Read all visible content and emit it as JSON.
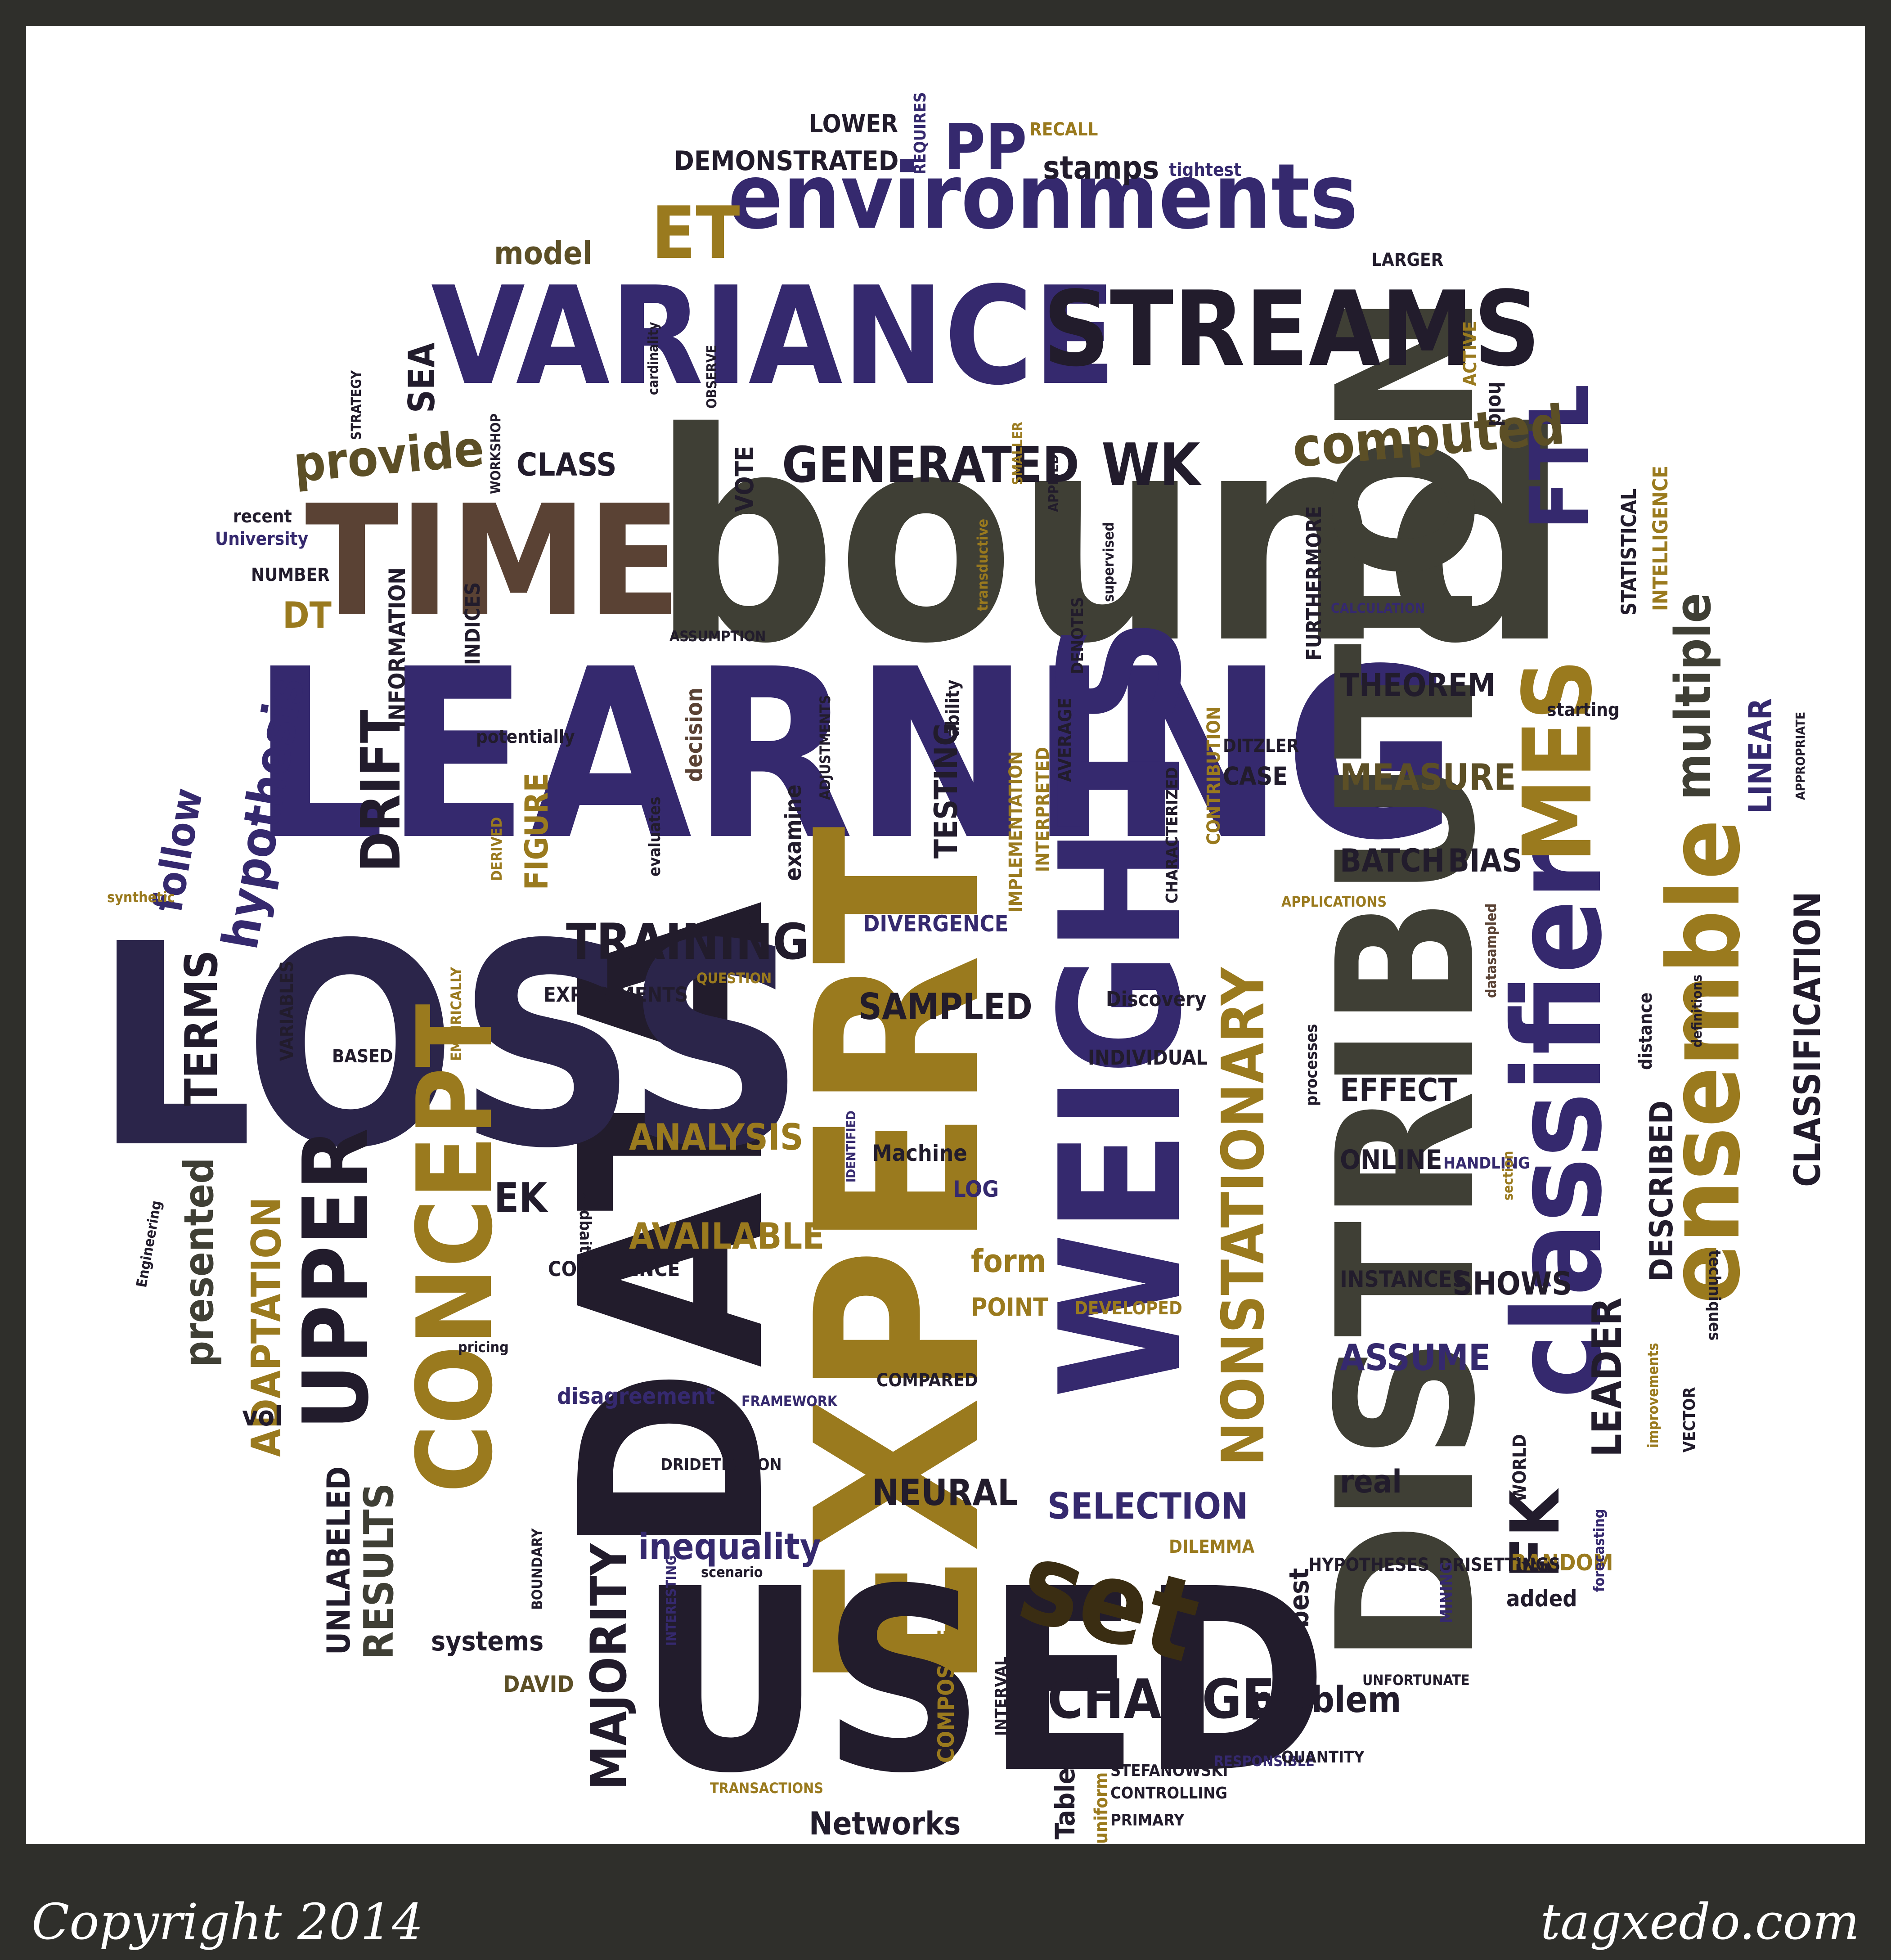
{
  "colors": {
    "frame": "#2f2f2b",
    "canvas": "#ffffff",
    "purple": "#35296e",
    "gold": "#9a7a1e",
    "olive": "#3f3f35",
    "brown": "#5a4234",
    "dark": "#221c2c"
  },
  "footer": {
    "copyright": "Copyright 2014",
    "site": "tagxedo.com"
  },
  "words": [
    "bound",
    "LEARNING",
    "DATA",
    "EXPERT",
    "LOSS",
    "DISTRIBUTION",
    "WEIGHTS",
    "USED",
    "TIME",
    "VARIANCE",
    "STREAMS",
    "environments",
    "classifier",
    "ensemble",
    "MES",
    "FTL",
    "CONCEPT",
    "UPPER",
    "NONSTATIONARY",
    "set",
    "TRAINING",
    "GENERATED",
    "WK",
    "computed",
    "provide",
    "hypothesis",
    "DRIFT",
    "FK",
    "ET",
    "PP",
    "CHANGE",
    "ADAPTATION",
    "ANALYSIS",
    "AVAILABLE",
    "SAMPLED",
    "SELECTION",
    "NEURAL",
    "MAJORITY",
    "TERMS",
    "presented",
    "follow",
    "RESULTS",
    "UNLABELED",
    "multiple",
    "CLASSIFICATION",
    "LINEAR",
    "THEOREM",
    "MEASURE",
    "BATCH",
    "BIAS",
    "LEADER",
    "DESCRIBED",
    "EFFECT",
    "ONLINE",
    "SHOWS",
    "INSTANCES",
    "ASSUME",
    "problem",
    "Networks",
    "systems",
    "inequality",
    "disagreement",
    "real",
    "best",
    "TESTING",
    "FIGURE",
    "INFORMATION",
    "CLASS",
    "SEA",
    "DT",
    "EK",
    "CONFIDENCE",
    "EXPERIMENTS",
    "DIVERGENCE",
    "INDIVIDUAL",
    "Discovery",
    "Machine",
    "LOG",
    "form",
    "POINT",
    "DEVELOPED",
    "COMPARED",
    "FRAMEWORK",
    "DRIDETECTION",
    "COMPOSITE",
    "INTERVAL",
    "DAVID",
    "Table",
    "uniform",
    "CONTROLLING",
    "PRIMARY",
    "STEFANOWSKI",
    "RESPONSIBLE",
    "QUANTITY",
    "UNFORTUNATE",
    "added",
    "RANDOM",
    "HYPOTHESES",
    "DRISETTINGS",
    "MINING",
    "WORLD",
    "forecasting",
    "VECTOR",
    "improvements",
    "techniques",
    "HANDLING",
    "section",
    "distance",
    "definitions",
    "datasampled",
    "processes",
    "APPLICATIONS",
    "APPROPRIATE",
    "CHARACTERIZED",
    "CONTRIBUTION",
    "IMPLEMENTATION",
    "INTERPRETED",
    "AVERAGE",
    "DENOTES",
    "ADJUSTMENTS",
    "examine",
    "evaluates",
    "decision",
    "potentially",
    "DERIVED",
    "ability",
    "transductive",
    "supervised",
    "APPLIED",
    "SMALLER",
    "ASSUMPTION",
    "CALCULATION",
    "FURTHERMORE",
    "STATISTICAL",
    "INTELLIGENCE",
    "starting",
    "DITZLER",
    "CASE",
    "VOTE",
    "INDICES",
    "NUMBER",
    "University",
    "recent",
    "WORKSHOP",
    "STRATEGY",
    "cardinality",
    "OBSERVE",
    "LARGER",
    "ACTIVE",
    "hold",
    "model",
    "DEMONSTRATED",
    "LOWER",
    "REQUIRES",
    "RECALL",
    "stamps",
    "tightest",
    "VARIABLES",
    "BASED",
    "EMPIRICALLY",
    "QUESTION",
    "synthetic",
    "Engineering",
    "zlidbait",
    "vol",
    "pricing",
    "BOUNDARY",
    "INTERESTING",
    "scenario",
    "DILEMMA",
    "TRANSACTIONS",
    "IDENTIFIED"
  ]
}
